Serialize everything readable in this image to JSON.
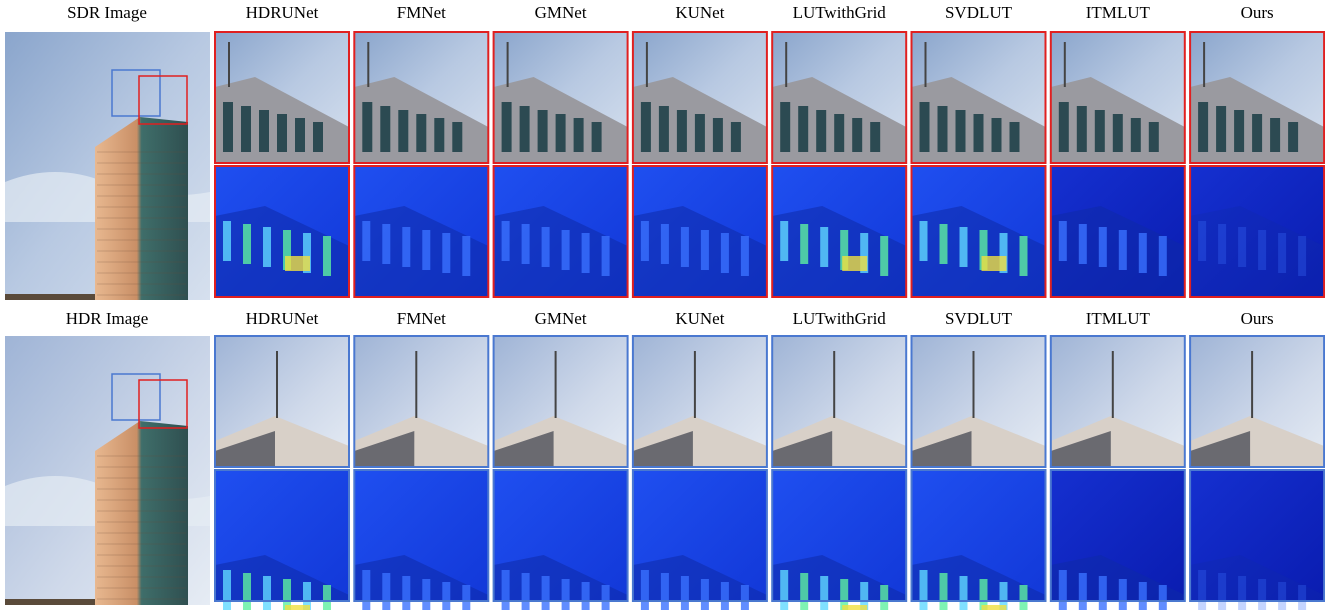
{
  "rows": [
    {
      "reference": "SDR Image",
      "methods": [
        "HDRUNet",
        "FMNet",
        "GMNet",
        "KUNet",
        "LUTwithGrid",
        "SVDLUT",
        "ITMLUT",
        "Ours"
      ]
    },
    {
      "reference": "HDR Image",
      "methods": [
        "HDRUNet",
        "FMNet",
        "GMNet",
        "KUNet",
        "LUTwithGrid",
        "SVDLUT",
        "ITMLUT",
        "Ours"
      ]
    }
  ]
}
